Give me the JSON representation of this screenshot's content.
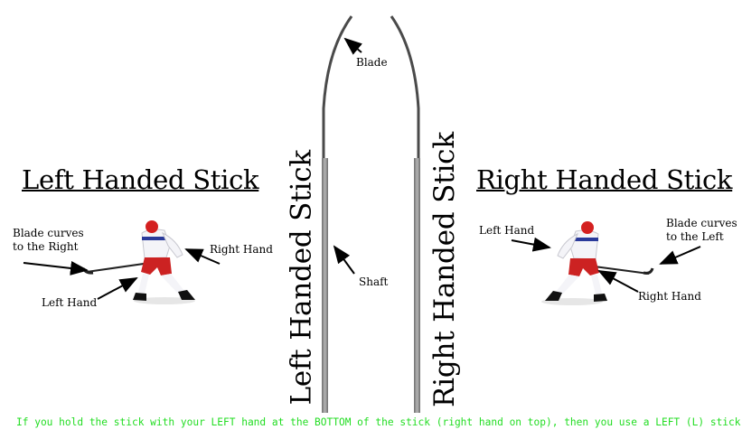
{
  "left": {
    "heading": "Left Handed Stick",
    "blade_label": [
      "Blade curves",
      "to the Right"
    ],
    "top_hand_label": "Right Hand",
    "bottom_hand_label": "Left Hand"
  },
  "right": {
    "heading": "Right Handed Stick",
    "blade_label": [
      "Blade curves",
      "to the Left"
    ],
    "top_hand_label": "Left Hand",
    "bottom_hand_label": "Right Hand"
  },
  "center": {
    "left_stick_label": "Left Handed Stick",
    "right_stick_label": "Right Handed Stick",
    "blade_label": "Blade",
    "shaft_label": "Shaft"
  },
  "footnote": "If you hold the stick with your LEFT hand at the BOTTOM of the stick (right hand on top), then you use a LEFT (L) stick",
  "colors": {
    "footnote": "#22dd22",
    "jersey": "#f4f4f8",
    "pants": "#cc2222",
    "helmet": "#d42020",
    "stick_shaft": "#8a8a8a"
  }
}
